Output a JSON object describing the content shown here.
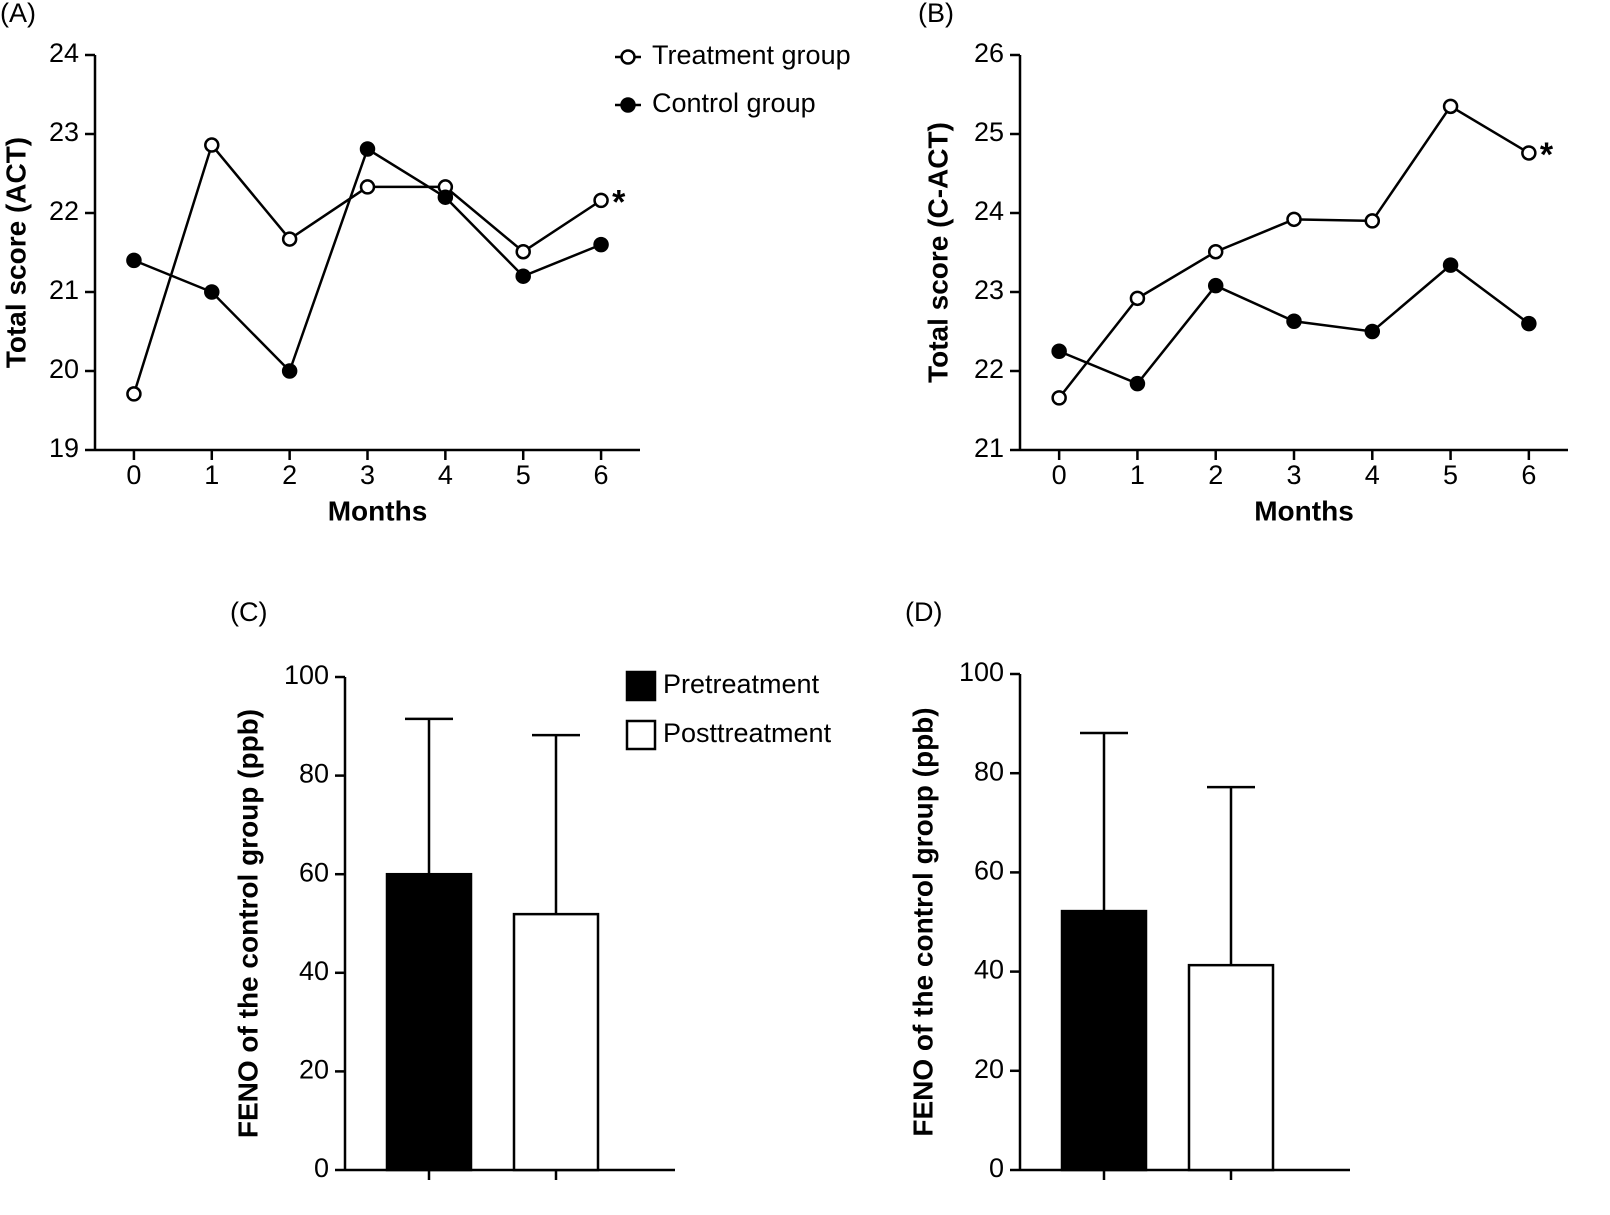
{
  "chart_data": [
    {
      "type": "line",
      "panel": "(A)",
      "ylabel": "Total score (ACT)",
      "xlabel": "Months",
      "x": [
        0,
        1,
        2,
        3,
        4,
        5,
        6
      ],
      "xlim": [
        -0.5,
        6.5
      ],
      "xticks": [
        0,
        1,
        2,
        3,
        4,
        5,
        6
      ],
      "ylim": [
        19,
        24
      ],
      "yticks": [
        19,
        20,
        21,
        22,
        23,
        24
      ],
      "annotation": "*",
      "series": [
        {
          "name": "Treatment group",
          "color": "#000000",
          "marker": "open",
          "values": [
            19.71,
            22.86,
            21.67,
            22.33,
            22.33,
            21.51,
            22.16
          ]
        },
        {
          "name": "Control group",
          "color": "#000000",
          "marker": "filled",
          "values": [
            21.4,
            21.0,
            20.0,
            22.81,
            22.2,
            21.2,
            21.6
          ]
        }
      ]
    },
    {
      "type": "line",
      "panel": "(B)",
      "ylabel": "Total score (C-ACT)",
      "xlabel": "Months",
      "x": [
        0,
        1,
        2,
        3,
        4,
        5,
        6
      ],
      "xlim": [
        -0.5,
        6.5
      ],
      "xticks": [
        0,
        1,
        2,
        3,
        4,
        5,
        6
      ],
      "ylim": [
        21,
        26
      ],
      "yticks": [
        21,
        22,
        23,
        24,
        25,
        26
      ],
      "annotation": "*",
      "series": [
        {
          "color": "#000000",
          "marker": "open",
          "values": [
            21.66,
            22.92,
            23.51,
            23.92,
            23.9,
            25.35,
            24.76
          ]
        },
        {
          "color": "#000000",
          "marker": "filled",
          "values": [
            22.25,
            21.84,
            23.08,
            22.63,
            22.5,
            23.34,
            22.6
          ]
        }
      ]
    },
    {
      "type": "bar",
      "panel": "(C)",
      "ylabel": "FENO of the control group (ppb)",
      "categories": [
        null,
        null
      ],
      "ylim": [
        0,
        100
      ],
      "yticks": [
        0,
        20,
        40,
        60,
        80,
        100
      ],
      "series": [
        {
          "name": "Pretreatment",
          "color": "#000000",
          "values": [
            60,
            null
          ],
          "errors": [
            31.5,
            null
          ]
        },
        {
          "name": "Posttreatment",
          "color": "#ffffff",
          "values": [
            null,
            51.9
          ],
          "errors": [
            null,
            36.3
          ]
        }
      ]
    },
    {
      "type": "bar",
      "panel": "(D)",
      "ylabel": "FENO of the control group (ppb)",
      "categories": [
        null,
        null
      ],
      "ylim": [
        0,
        100
      ],
      "yticks": [
        0,
        20,
        40,
        60,
        80,
        100
      ],
      "series": [
        {
          "color": "#000000",
          "values": [
            52.2,
            null
          ],
          "errors": [
            35.9,
            null
          ]
        },
        {
          "color": "#ffffff",
          "values": [
            null,
            41.3
          ],
          "errors": [
            null,
            35.9
          ]
        }
      ]
    }
  ]
}
